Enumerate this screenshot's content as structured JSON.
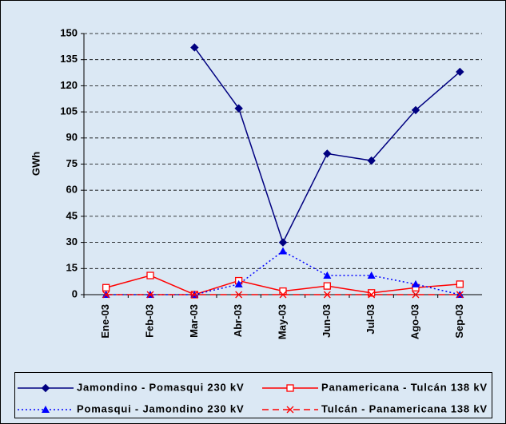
{
  "chart_data": {
    "type": "line",
    "y_label": "GWh",
    "categories": [
      "Ene-03",
      "Feb-03",
      "Mar-03",
      "Abr-03",
      "May-03",
      "Jun-03",
      "Jul-03",
      "Ago-03",
      "Sep-03"
    ],
    "ylim": [
      0,
      150
    ],
    "yticks": [
      0,
      15,
      30,
      45,
      60,
      75,
      90,
      105,
      120,
      135,
      150
    ],
    "grid": true,
    "legend": "bottom",
    "series": [
      {
        "name": "Jamondino - Pomasqui 230 kV",
        "color": "#000080",
        "dash": "solid",
        "marker": "diamond",
        "values": [
          null,
          null,
          142,
          107,
          30,
          81,
          77,
          106,
          128
        ]
      },
      {
        "name": "Panamericana - Tulcán 138 kV",
        "color": "#ff0000",
        "dash": "solid",
        "marker": "square",
        "values": [
          4,
          11,
          0,
          8,
          2,
          5,
          1,
          4,
          6
        ]
      },
      {
        "name": "Pomasqui - Jamondino 230 kV",
        "color": "#0000ff",
        "dash": "dotted",
        "marker": "triangle",
        "values": [
          0,
          0,
          0,
          6,
          25,
          11,
          11,
          6,
          0
        ]
      },
      {
        "name": "Tulcán - Panamericana 138 kV",
        "color": "#ff0000",
        "dash": "dashed",
        "marker": "x",
        "values": [
          0,
          0,
          0,
          0,
          0,
          0,
          0,
          0,
          0
        ]
      }
    ]
  }
}
